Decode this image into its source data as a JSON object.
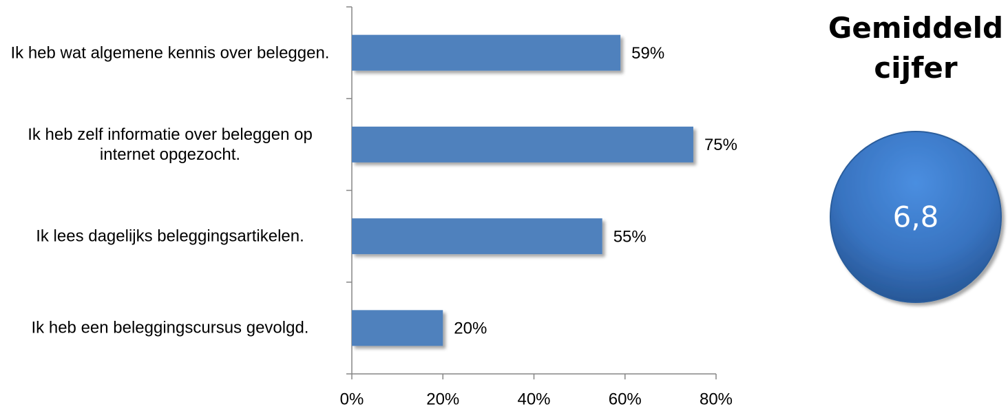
{
  "chart_data": {
    "type": "bar",
    "orientation": "horizontal",
    "categories": [
      "Ik heb wat algemene kennis over beleggen.",
      "Ik heb zelf informatie over beleggen op internet opgezocht.",
      "Ik lees dagelijks beleggingsartikelen.",
      "Ik heb een beleggingscursus gevolgd."
    ],
    "values": [
      59,
      75,
      55,
      20
    ],
    "value_labels": [
      "59%",
      "75%",
      "55%",
      "20%"
    ],
    "color": "#4f81bd",
    "xlim": [
      0,
      80
    ],
    "xticks": [
      {
        "value": 0,
        "label": "0%"
      },
      {
        "value": 20,
        "label": "20%"
      },
      {
        "value": 40,
        "label": "40%"
      },
      {
        "value": 60,
        "label": "60%"
      },
      {
        "value": 80,
        "label": "80%"
      }
    ],
    "grid": false
  },
  "average": {
    "title": "Gemiddeld cijfer",
    "value": 6.8,
    "label": "6,8"
  }
}
